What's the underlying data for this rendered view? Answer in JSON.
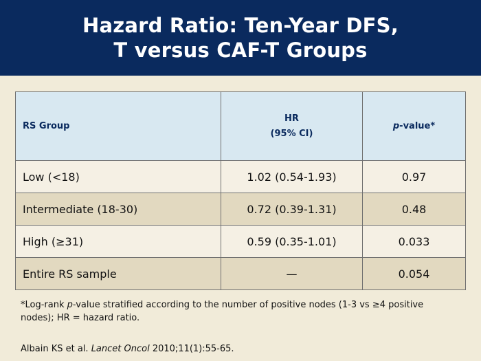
{
  "title": {
    "line1": "Hazard Ratio: Ten-Year DFS,",
    "line2": "T versus CAF-T Groups"
  },
  "table": {
    "headers": {
      "group": "RS Group",
      "hr_line1": "HR",
      "hr_line2": "(95% CI)",
      "p_italic": "p",
      "p_rest": "-value*"
    },
    "rows": [
      {
        "group": "Low (<18)",
        "hr": "1.02 (0.54-1.93)",
        "p": "0.97"
      },
      {
        "group": "Intermediate (18-30)",
        "hr": "0.72 (0.39-1.31)",
        "p": "0.48"
      },
      {
        "group": "High (≥31)",
        "hr": "0.59 (0.35-1.01)",
        "p": "0.033"
      },
      {
        "group": "Entire RS sample",
        "hr": "—",
        "p": "0.054"
      }
    ]
  },
  "footnote": {
    "part1": "*Log-rank ",
    "italic": "p",
    "part2": "-value stratified according to the number of positive nodes (1-3 vs ≥4 positive nodes); HR = hazard ratio."
  },
  "citation": {
    "authors": "Albain KS et al. ",
    "journal": "Lancet Oncol",
    "details": " 2010;11(1):55-65."
  },
  "colors": {
    "title_bar": "#0a2a5e",
    "background": "#f1ebd9",
    "header_fill": "#d8e8f1",
    "row_light": "#f5f0e4",
    "row_dark": "#e2d9c0"
  }
}
